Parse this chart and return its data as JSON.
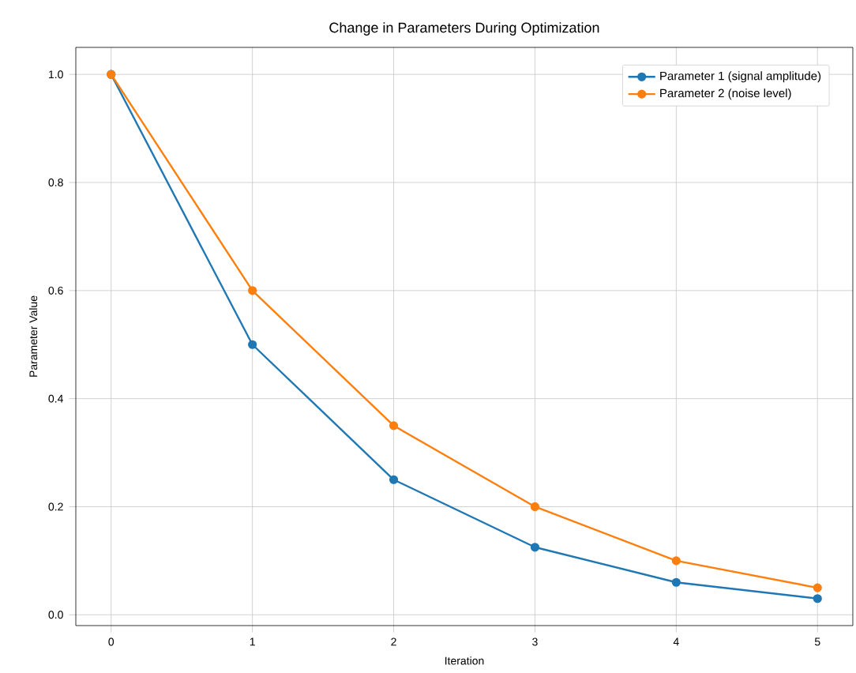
{
  "chart_data": {
    "type": "line",
    "title": "Change in Parameters During Optimization",
    "xlabel": "Iteration",
    "ylabel": "Parameter Value",
    "x": [
      0,
      1,
      2,
      3,
      4,
      5
    ],
    "series": [
      {
        "name": "Parameter 1 (signal amplitude)",
        "color": "#1f77b4",
        "values": [
          1.0,
          0.5,
          0.25,
          0.125,
          0.06,
          0.03
        ]
      },
      {
        "name": "Parameter 2 (noise level)",
        "color": "#ff7f0e",
        "values": [
          1.0,
          0.6,
          0.35,
          0.2,
          0.1,
          0.05
        ]
      }
    ],
    "xlim": [
      -0.25,
      5.25
    ],
    "ylim": [
      -0.02,
      1.05
    ],
    "xticks": [
      0,
      1,
      2,
      3,
      4,
      5
    ],
    "yticks": [
      {
        "value": 0,
        "label": "0.0"
      },
      {
        "value": 0.2,
        "label": "0.2"
      },
      {
        "value": 0.4,
        "label": "0.4"
      },
      {
        "value": 0.6,
        "label": "0.6"
      },
      {
        "value": 0.8,
        "label": "0.8"
      },
      {
        "value": 1,
        "label": "1.0"
      }
    ],
    "grid": true,
    "legend": "top right",
    "marker": "circle",
    "line_style": "solid"
  }
}
